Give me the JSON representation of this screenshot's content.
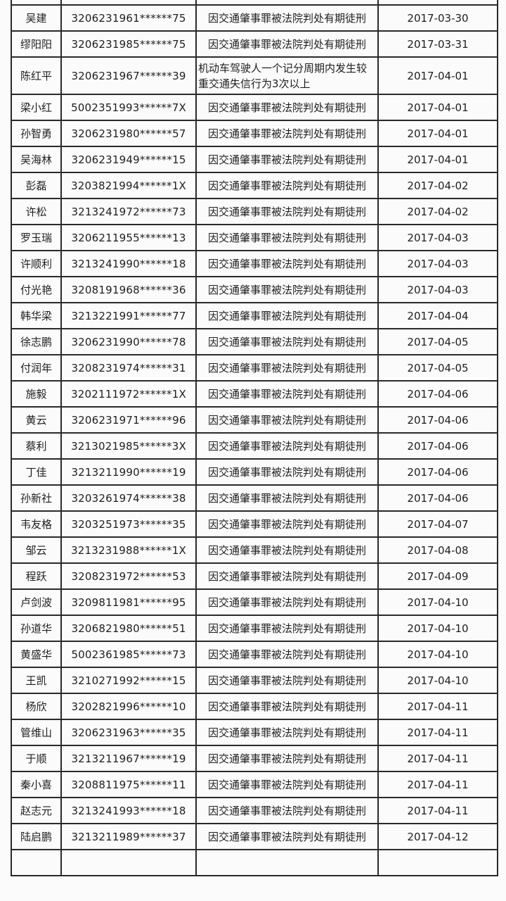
{
  "rows": [
    {
      "name": "吴建",
      "id": "3206231961******75",
      "reason": "因交通肇事罪被法院判处有期徒刑",
      "date": "2017-03-30"
    },
    {
      "name": "缪阳阳",
      "id": "3206231985******75",
      "reason": "因交通肇事罪被法院判处有期徒刑",
      "date": "2017-03-31"
    },
    {
      "name": "陈红平",
      "id": "3206231967******39",
      "reason": "机动车驾驶人一个记分周期内发生较重交通失信行为3次以上",
      "date": "2017-04-01"
    },
    {
      "name": "梁小红",
      "id": "5002351993******7X",
      "reason": "因交通肇事罪被法院判处有期徒刑",
      "date": "2017-04-01"
    },
    {
      "name": "孙智勇",
      "id": "3206231980******57",
      "reason": "因交通肇事罪被法院判处有期徒刑",
      "date": "2017-04-01"
    },
    {
      "name": "吴海林",
      "id": "3206231949******15",
      "reason": "因交通肇事罪被法院判处有期徒刑",
      "date": "2017-04-01"
    },
    {
      "name": "彭磊",
      "id": "3203821994******1X",
      "reason": "因交通肇事罪被法院判处有期徒刑",
      "date": "2017-04-02"
    },
    {
      "name": "许松",
      "id": "3213241972******73",
      "reason": "因交通肇事罪被法院判处有期徒刑",
      "date": "2017-04-02"
    },
    {
      "name": "罗玉瑞",
      "id": "3206211955******13",
      "reason": "因交通肇事罪被法院判处有期徒刑",
      "date": "2017-04-03"
    },
    {
      "name": "许顺利",
      "id": "3213241990******18",
      "reason": "因交通肇事罪被法院判处有期徒刑",
      "date": "2017-04-03"
    },
    {
      "name": "付光艳",
      "id": "3208191968******36",
      "reason": "因交通肇事罪被法院判处有期徒刑",
      "date": "2017-04-03"
    },
    {
      "name": "韩华梁",
      "id": "3213221991******77",
      "reason": "因交通肇事罪被法院判处有期徒刑",
      "date": "2017-04-04"
    },
    {
      "name": "徐志鹏",
      "id": "3206231990******78",
      "reason": "因交通肇事罪被法院判处有期徒刑",
      "date": "2017-04-05"
    },
    {
      "name": "付润年",
      "id": "3208231974******31",
      "reason": "因交通肇事罪被法院判处有期徒刑",
      "date": "2017-04-05"
    },
    {
      "name": "施毅",
      "id": "3202111972******1X",
      "reason": "因交通肇事罪被法院判处有期徒刑",
      "date": "2017-04-06"
    },
    {
      "name": "黄云",
      "id": "3206231971******96",
      "reason": "因交通肇事罪被法院判处有期徒刑",
      "date": "2017-04-06"
    },
    {
      "name": "蔡利",
      "id": "3213021985******3X",
      "reason": "因交通肇事罪被法院判处有期徒刑",
      "date": "2017-04-06"
    },
    {
      "name": "丁佳",
      "id": "3213211990******19",
      "reason": "因交通肇事罪被法院判处有期徒刑",
      "date": "2017-04-06"
    },
    {
      "name": "孙新社",
      "id": "3203261974******38",
      "reason": "因交通肇事罪被法院判处有期徒刑",
      "date": "2017-04-06"
    },
    {
      "name": "韦友格",
      "id": "3203251973******35",
      "reason": "因交通肇事罪被法院判处有期徒刑",
      "date": "2017-04-07"
    },
    {
      "name": "邹云",
      "id": "3213231988******1X",
      "reason": "因交通肇事罪被法院判处有期徒刑",
      "date": "2017-04-08"
    },
    {
      "name": "程跃",
      "id": "3208231972******53",
      "reason": "因交通肇事罪被法院判处有期徒刑",
      "date": "2017-04-09"
    },
    {
      "name": "卢剑波",
      "id": "3209811981******95",
      "reason": "因交通肇事罪被法院判处有期徒刑",
      "date": "2017-04-10"
    },
    {
      "name": "孙道华",
      "id": "3206821980******51",
      "reason": "因交通肇事罪被法院判处有期徒刑",
      "date": "2017-04-10"
    },
    {
      "name": "黄盛华",
      "id": "5002361985******73",
      "reason": "因交通肇事罪被法院判处有期徒刑",
      "date": "2017-04-10"
    },
    {
      "name": "王凯",
      "id": "3210271992******15",
      "reason": "因交通肇事罪被法院判处有期徒刑",
      "date": "2017-04-10"
    },
    {
      "name": "杨欣",
      "id": "3202821996******10",
      "reason": "因交通肇事罪被法院判处有期徒刑",
      "date": "2017-04-11"
    },
    {
      "name": "管维山",
      "id": "3206231963******35",
      "reason": "因交通肇事罪被法院判处有期徒刑",
      "date": "2017-04-11"
    },
    {
      "name": "于顺",
      "id": "3213211967******19",
      "reason": "因交通肇事罪被法院判处有期徒刑",
      "date": "2017-04-11"
    },
    {
      "name": "秦小喜",
      "id": "3208811975******11",
      "reason": "因交通肇事罪被法院判处有期徒刑",
      "date": "2017-04-11"
    },
    {
      "name": "赵志元",
      "id": "3213241993******18",
      "reason": "因交通肇事罪被法院判处有期徒刑",
      "date": "2017-04-11"
    },
    {
      "name": "陆启鹏",
      "id": "3213211989******37",
      "reason": "因交通肇事罪被法院判处有期徒刑",
      "date": "2017-04-12"
    }
  ]
}
